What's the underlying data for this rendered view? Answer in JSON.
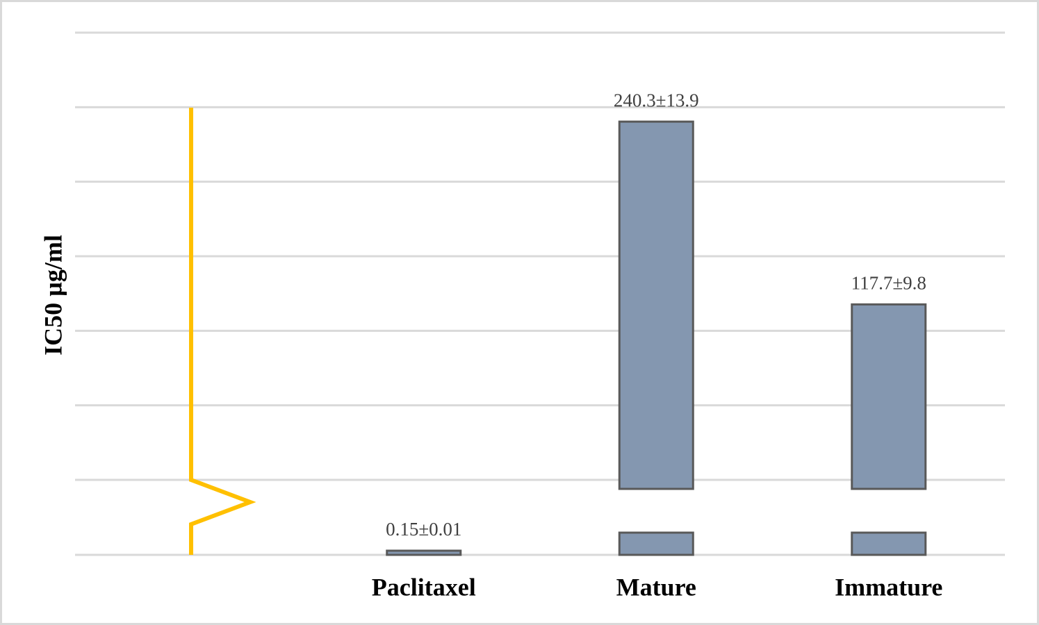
{
  "chart_data": {
    "type": "bar",
    "y_label": "IC50 µg/ml",
    "categories": [
      null,
      "Paclitaxel",
      "Mature",
      "Immature"
    ],
    "values": [
      null,
      0.15,
      240.3,
      117.7
    ],
    "value_labels": [
      null,
      "0.15±0.01",
      "240.3±13.9",
      "117.7±9.8"
    ],
    "color": "#8497b0",
    "edge_color": "#595959",
    "axis_break": true,
    "break_color": "#ffc000",
    "lower_ylim": [
      0,
      0.8
    ],
    "lower_yticks": [
      0
    ],
    "ylim": [
      0,
      300
    ],
    "yticks": [
      0,
      50,
      100,
      150,
      200,
      250,
      300
    ],
    "show_tick_labels": false,
    "grid": true
  }
}
